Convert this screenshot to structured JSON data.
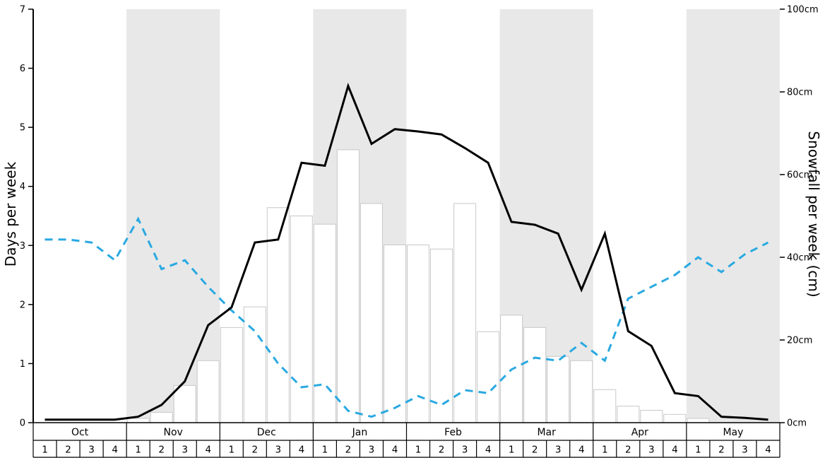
{
  "chart_data": {
    "type": "line",
    "months": [
      "Oct",
      "Nov",
      "Dec",
      "Jan",
      "Feb",
      "Mar",
      "Apr",
      "May"
    ],
    "week_labels": [
      "1",
      "2",
      "3",
      "4"
    ],
    "shaded_months": [
      "Nov",
      "Jan",
      "Mar",
      "May"
    ],
    "left_axis": {
      "label": "Days per week",
      "min": 0,
      "max": 7,
      "tick_values": [
        0,
        1,
        2,
        3,
        4,
        5,
        6,
        7
      ],
      "tick_labels": [
        "0",
        "1",
        "2",
        "3",
        "4",
        "5",
        "6",
        "7"
      ]
    },
    "right_axis": {
      "label": "Snowfall per week (cm)",
      "min": 0,
      "max": 100,
      "tick_values": [
        0,
        20,
        40,
        60,
        80,
        100
      ],
      "tick_labels": [
        "0cm",
        "20cm",
        "40cm",
        "60cm",
        "80cm",
        "100cm"
      ]
    },
    "series": [
      {
        "name": "days-per-week-solid",
        "type": "line",
        "axis": "left",
        "color": "#000000",
        "dash": "solid",
        "width": 3,
        "values": [
          0.05,
          0.05,
          0.05,
          0.05,
          0.1,
          0.3,
          0.7,
          1.65,
          1.95,
          3.05,
          3.1,
          4.4,
          4.35,
          5.7,
          4.72,
          4.97,
          4.93,
          4.88,
          4.65,
          4.4,
          3.4,
          3.35,
          3.2,
          2.25,
          3.2,
          1.55,
          1.3,
          0.5,
          0.45,
          0.1,
          0.08,
          0.05
        ]
      },
      {
        "name": "days-per-week-dashed",
        "type": "line",
        "axis": "left",
        "color": "#29a9e1",
        "dash": "dashed",
        "width": 3,
        "values": [
          3.1,
          3.1,
          3.05,
          2.75,
          3.45,
          2.6,
          2.75,
          2.3,
          1.9,
          1.55,
          1.0,
          0.6,
          0.65,
          0.2,
          0.1,
          0.25,
          0.45,
          0.3,
          0.55,
          0.5,
          0.9,
          1.1,
          1.05,
          1.35,
          1.05,
          2.1,
          2.3,
          2.5,
          2.8,
          2.55,
          2.85,
          3.05
        ]
      },
      {
        "name": "snowfall-per-week-cm",
        "type": "bar",
        "axis": "right",
        "fill": "#ffffff",
        "stroke": "#c8c8c8",
        "values": [
          0,
          0,
          0,
          0,
          1,
          2.5,
          9,
          15,
          23,
          28,
          52,
          50,
          48,
          66,
          53,
          43,
          43,
          42,
          53,
          22,
          26,
          23,
          16,
          15,
          8,
          4,
          3,
          2,
          1,
          0,
          0,
          0
        ]
      }
    ],
    "colors": {
      "band": "#e8e8e8",
      "background": "#ffffff",
      "axis": "#000000"
    }
  }
}
